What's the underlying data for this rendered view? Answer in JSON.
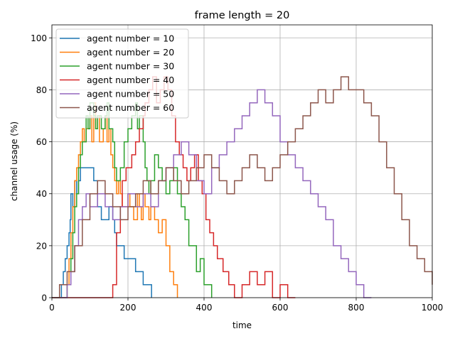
{
  "chart_data": {
    "type": "line",
    "title": "frame length = 20",
    "xlabel": "time",
    "ylabel": "channel usage (%)",
    "xlim": [
      0,
      1000
    ],
    "ylim": [
      0,
      105
    ],
    "xticks": [
      0,
      200,
      400,
      600,
      800,
      1000
    ],
    "yticks": [
      0,
      20,
      40,
      60,
      80,
      100
    ],
    "grid": true,
    "legend_position": "top-left",
    "step": true,
    "series": [
      {
        "name": "agent number = 10",
        "color": "#1f77b4",
        "points": [
          [
            0,
            0
          ],
          [
            25,
            5
          ],
          [
            30,
            10
          ],
          [
            35,
            15
          ],
          [
            40,
            20
          ],
          [
            45,
            25
          ],
          [
            48,
            30
          ],
          [
            50,
            40
          ],
          [
            55,
            35
          ],
          [
            60,
            45
          ],
          [
            65,
            40
          ],
          [
            70,
            45
          ],
          [
            75,
            50
          ],
          [
            110,
            45
          ],
          [
            120,
            35
          ],
          [
            130,
            30
          ],
          [
            150,
            35
          ],
          [
            160,
            30
          ],
          [
            165,
            25
          ],
          [
            170,
            20
          ],
          [
            190,
            15
          ],
          [
            220,
            10
          ],
          [
            240,
            5
          ],
          [
            262,
            0
          ]
        ]
      },
      {
        "name": "agent number = 20",
        "color": "#ff7f0e",
        "points": [
          [
            0,
            0
          ],
          [
            40,
            5
          ],
          [
            45,
            15
          ],
          [
            50,
            25
          ],
          [
            55,
            35
          ],
          [
            60,
            45
          ],
          [
            65,
            50
          ],
          [
            70,
            55
          ],
          [
            75,
            60
          ],
          [
            80,
            65
          ],
          [
            85,
            60
          ],
          [
            90,
            65
          ],
          [
            100,
            70
          ],
          [
            105,
            60
          ],
          [
            110,
            75
          ],
          [
            115,
            65
          ],
          [
            120,
            70
          ],
          [
            125,
            60
          ],
          [
            135,
            65
          ],
          [
            140,
            70
          ],
          [
            145,
            60
          ],
          [
            150,
            65
          ],
          [
            155,
            55
          ],
          [
            160,
            50
          ],
          [
            165,
            45
          ],
          [
            170,
            40
          ],
          [
            175,
            45
          ],
          [
            180,
            40
          ],
          [
            185,
            35
          ],
          [
            200,
            40
          ],
          [
            205,
            35
          ],
          [
            215,
            30
          ],
          [
            225,
            40
          ],
          [
            230,
            35
          ],
          [
            235,
            30
          ],
          [
            240,
            40
          ],
          [
            245,
            35
          ],
          [
            255,
            30
          ],
          [
            260,
            35
          ],
          [
            270,
            30
          ],
          [
            280,
            25
          ],
          [
            290,
            30
          ],
          [
            300,
            20
          ],
          [
            310,
            10
          ],
          [
            320,
            5
          ],
          [
            330,
            0
          ]
        ]
      },
      {
        "name": "agent number = 30",
        "color": "#2ca02c",
        "points": [
          [
            0,
            0
          ],
          [
            40,
            5
          ],
          [
            50,
            15
          ],
          [
            55,
            25
          ],
          [
            60,
            35
          ],
          [
            65,
            40
          ],
          [
            70,
            50
          ],
          [
            75,
            55
          ],
          [
            80,
            60
          ],
          [
            90,
            70
          ],
          [
            95,
            65
          ],
          [
            100,
            75
          ],
          [
            110,
            70
          ],
          [
            115,
            65
          ],
          [
            120,
            70
          ],
          [
            130,
            65
          ],
          [
            140,
            70
          ],
          [
            145,
            75
          ],
          [
            150,
            65
          ],
          [
            160,
            60
          ],
          [
            165,
            50
          ],
          [
            170,
            45
          ],
          [
            180,
            50
          ],
          [
            190,
            60
          ],
          [
            200,
            65
          ],
          [
            210,
            70
          ],
          [
            220,
            75
          ],
          [
            225,
            65
          ],
          [
            230,
            70
          ],
          [
            240,
            60
          ],
          [
            245,
            50
          ],
          [
            250,
            45
          ],
          [
            255,
            40
          ],
          [
            260,
            45
          ],
          [
            270,
            55
          ],
          [
            280,
            50
          ],
          [
            290,
            45
          ],
          [
            300,
            40
          ],
          [
            310,
            45
          ],
          [
            320,
            50
          ],
          [
            330,
            40
          ],
          [
            340,
            35
          ],
          [
            350,
            30
          ],
          [
            360,
            20
          ],
          [
            380,
            10
          ],
          [
            390,
            15
          ],
          [
            400,
            5
          ],
          [
            420,
            0
          ]
        ]
      },
      {
        "name": "agent number = 40",
        "color": "#d62728",
        "points": [
          [
            0,
            0
          ],
          [
            160,
            5
          ],
          [
            170,
            25
          ],
          [
            180,
            35
          ],
          [
            185,
            45
          ],
          [
            195,
            50
          ],
          [
            210,
            55
          ],
          [
            220,
            60
          ],
          [
            230,
            65
          ],
          [
            240,
            70
          ],
          [
            245,
            75
          ],
          [
            255,
            80
          ],
          [
            265,
            85
          ],
          [
            275,
            75
          ],
          [
            285,
            80
          ],
          [
            295,
            85
          ],
          [
            305,
            80
          ],
          [
            315,
            70
          ],
          [
            325,
            60
          ],
          [
            335,
            55
          ],
          [
            345,
            50
          ],
          [
            355,
            45
          ],
          [
            365,
            50
          ],
          [
            375,
            55
          ],
          [
            385,
            45
          ],
          [
            395,
            40
          ],
          [
            405,
            30
          ],
          [
            415,
            25
          ],
          [
            425,
            20
          ],
          [
            435,
            15
          ],
          [
            450,
            10
          ],
          [
            465,
            5
          ],
          [
            480,
            0
          ],
          [
            500,
            5
          ],
          [
            520,
            10
          ],
          [
            540,
            5
          ],
          [
            560,
            10
          ],
          [
            580,
            0
          ],
          [
            600,
            5
          ],
          [
            620,
            0
          ],
          [
            640,
            0
          ]
        ]
      },
      {
        "name": "agent number = 50",
        "color": "#9467bd",
        "points": [
          [
            0,
            0
          ],
          [
            40,
            5
          ],
          [
            50,
            10
          ],
          [
            60,
            20
          ],
          [
            70,
            30
          ],
          [
            80,
            35
          ],
          [
            90,
            40
          ],
          [
            100,
            35
          ],
          [
            120,
            40
          ],
          [
            140,
            35
          ],
          [
            160,
            30
          ],
          [
            180,
            35
          ],
          [
            200,
            40
          ],
          [
            220,
            35
          ],
          [
            240,
            40
          ],
          [
            260,
            35
          ],
          [
            280,
            45
          ],
          [
            300,
            50
          ],
          [
            320,
            55
          ],
          [
            340,
            60
          ],
          [
            360,
            55
          ],
          [
            380,
            45
          ],
          [
            400,
            40
          ],
          [
            420,
            50
          ],
          [
            440,
            55
          ],
          [
            460,
            60
          ],
          [
            480,
            65
          ],
          [
            500,
            70
          ],
          [
            520,
            75
          ],
          [
            540,
            80
          ],
          [
            560,
            75
          ],
          [
            580,
            70
          ],
          [
            600,
            60
          ],
          [
            620,
            55
          ],
          [
            640,
            50
          ],
          [
            660,
            45
          ],
          [
            680,
            40
          ],
          [
            700,
            35
          ],
          [
            720,
            30
          ],
          [
            740,
            20
          ],
          [
            760,
            15
          ],
          [
            780,
            10
          ],
          [
            800,
            5
          ],
          [
            820,
            0
          ],
          [
            840,
            0
          ]
        ]
      },
      {
        "name": "agent number = 60",
        "color": "#8c564b",
        "points": [
          [
            0,
            0
          ],
          [
            20,
            5
          ],
          [
            40,
            10
          ],
          [
            60,
            20
          ],
          [
            80,
            30
          ],
          [
            100,
            40
          ],
          [
            120,
            45
          ],
          [
            140,
            40
          ],
          [
            160,
            35
          ],
          [
            180,
            30
          ],
          [
            200,
            35
          ],
          [
            220,
            40
          ],
          [
            240,
            45
          ],
          [
            260,
            40
          ],
          [
            280,
            45
          ],
          [
            300,
            50
          ],
          [
            320,
            45
          ],
          [
            340,
            40
          ],
          [
            360,
            45
          ],
          [
            380,
            50
          ],
          [
            400,
            55
          ],
          [
            420,
            50
          ],
          [
            440,
            45
          ],
          [
            460,
            40
          ],
          [
            480,
            45
          ],
          [
            500,
            50
          ],
          [
            520,
            55
          ],
          [
            540,
            50
          ],
          [
            560,
            45
          ],
          [
            580,
            50
          ],
          [
            600,
            55
          ],
          [
            620,
            60
          ],
          [
            640,
            65
          ],
          [
            660,
            70
          ],
          [
            680,
            75
          ],
          [
            700,
            80
          ],
          [
            720,
            75
          ],
          [
            740,
            80
          ],
          [
            760,
            85
          ],
          [
            780,
            80
          ],
          [
            800,
            80
          ],
          [
            820,
            75
          ],
          [
            840,
            70
          ],
          [
            860,
            60
          ],
          [
            880,
            50
          ],
          [
            900,
            40
          ],
          [
            920,
            30
          ],
          [
            940,
            20
          ],
          [
            960,
            15
          ],
          [
            980,
            10
          ],
          [
            1000,
            5
          ]
        ]
      }
    ]
  }
}
